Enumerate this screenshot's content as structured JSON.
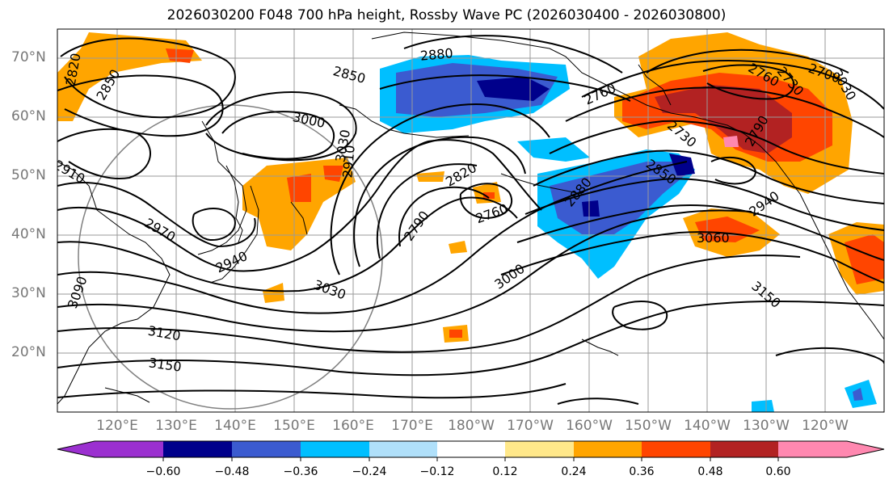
{
  "title": "2026030200 F048 700 hPa height, Rossby Wave PC (2026030400 - 2026030800)",
  "lat_labels": [
    "70°N",
    "60°N",
    "50°N",
    "40°N",
    "30°N",
    "20°N"
  ],
  "lon_labels": [
    "120°E",
    "130°E",
    "140°E",
    "150°E",
    "160°E",
    "170°E",
    "180°W",
    "170°W",
    "160°W",
    "150°W",
    "140°W",
    "130°W",
    "120°W"
  ],
  "contour_labels": [
    "2820",
    "2850",
    "2880",
    "2850",
    "2760",
    "2700",
    "2760",
    "2730",
    "3000",
    "2910",
    "3030",
    "3030",
    "2910",
    "2970",
    "2940",
    "2820",
    "2790",
    "2760",
    "2880",
    "2850",
    "2940",
    "3060",
    "3000",
    "3090",
    "3030",
    "3120",
    "3150",
    "3150",
    "2730",
    "2790"
  ],
  "colorbar": {
    "ticks": [
      "−0.60",
      "−0.48",
      "−0.36",
      "−0.24",
      "−0.12",
      "0.12",
      "0.24",
      "0.36",
      "0.48",
      "0.60"
    ],
    "colors": [
      "#9b30d0",
      "#00008b",
      "#3b5bd0",
      "#00bfff",
      "#b0e0fa",
      "#ffffff",
      "#ffe88a",
      "#ffa500",
      "#ff4500",
      "#b22222",
      "#ff88b0"
    ]
  }
}
